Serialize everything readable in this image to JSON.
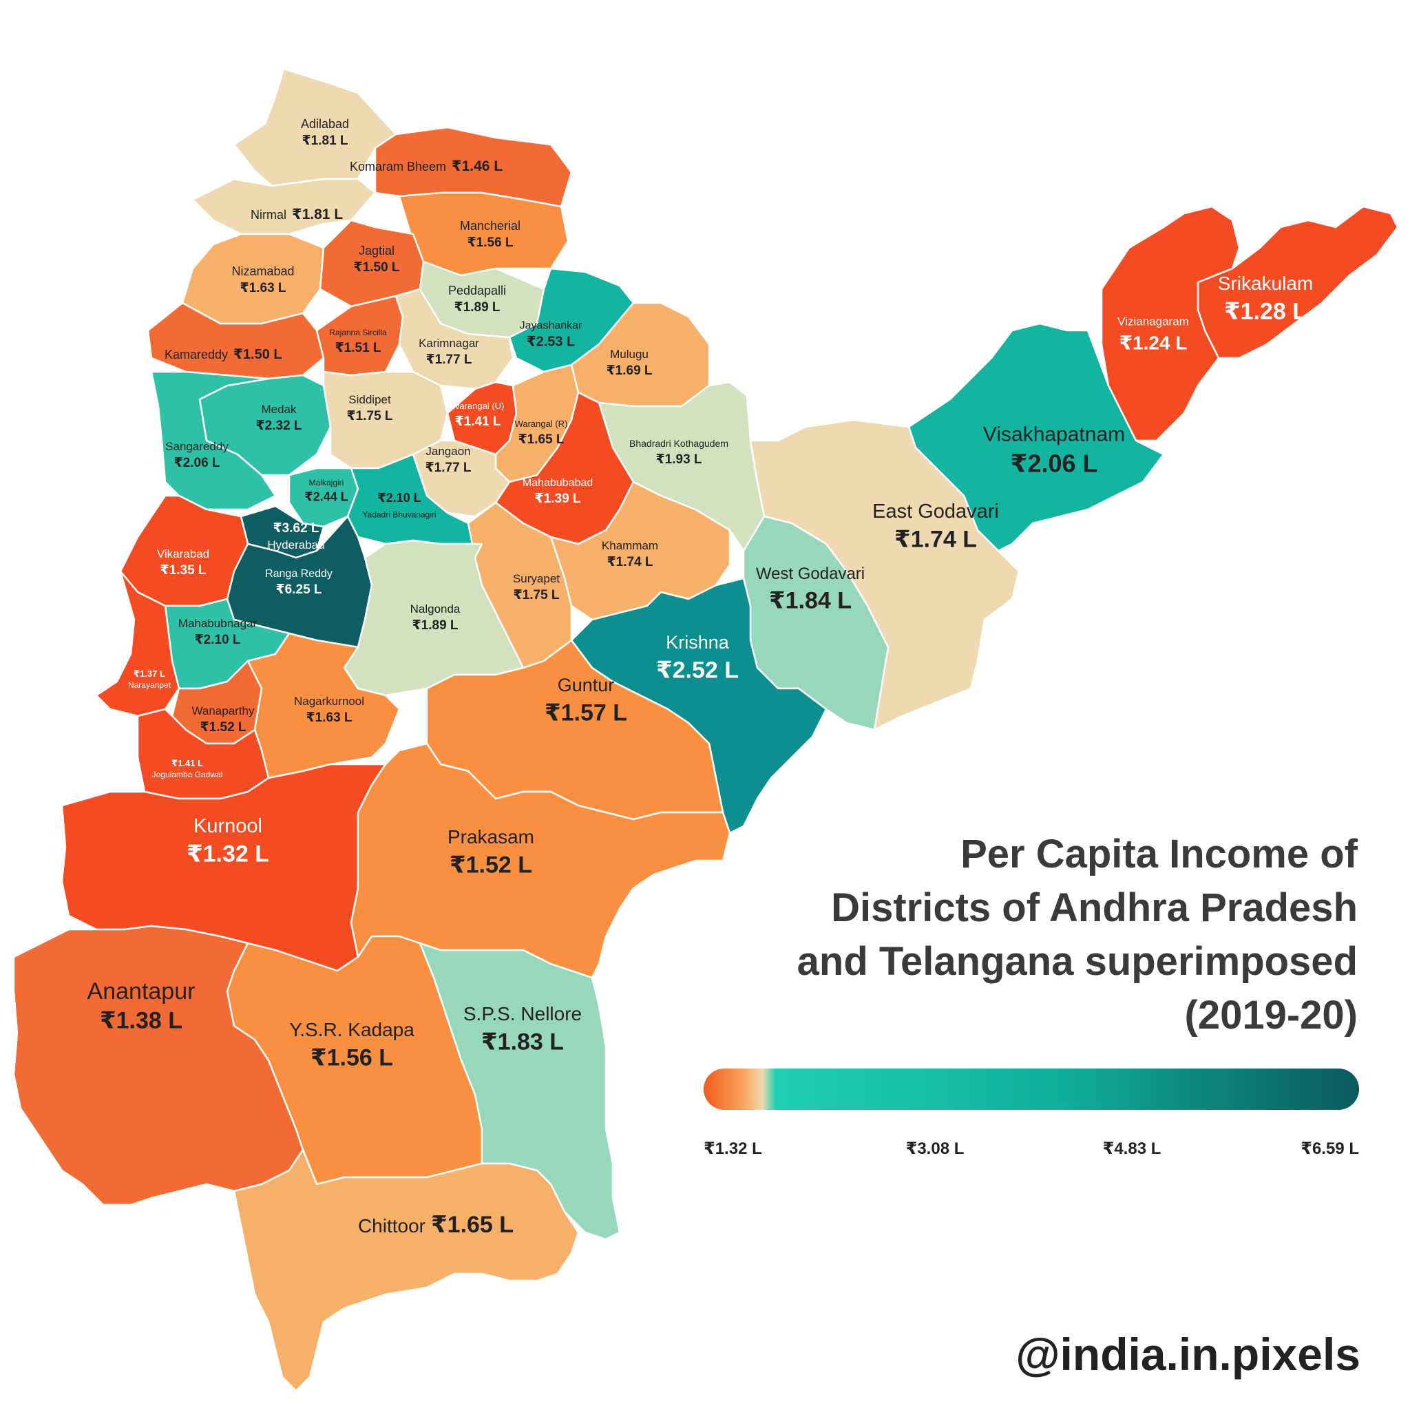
{
  "title": {
    "lines": [
      "Per Capita Income of",
      "Districts of Andhra Pradesh",
      "and Telangana superimposed",
      "(2019-20)"
    ]
  },
  "legend": {
    "ticks": [
      "₹1.32 L",
      "₹3.08 L",
      "₹4.83 L",
      "₹6.59 L"
    ],
    "colors": [
      "#f25a1e",
      "#f7a35c",
      "#efd9b0",
      "#1fd0b4",
      "#11a898",
      "#0a6f74",
      "#0b5a5e"
    ]
  },
  "credit": "@india.in.pixels",
  "colors": {
    "pale": "#eed9b0",
    "light_orange": "#f7b06a",
    "orange": "#f98f40",
    "deep_orange": "#f26a34",
    "red_orange": "#f44b22",
    "mint": "#97d8bd",
    "light_green": "#d2e2be",
    "teal": "#13b4a0",
    "mid_teal": "#2fc0a8",
    "dark_teal": "#0e8f8f",
    "darkest_teal": "#0d5d62",
    "border": "#ffffff"
  },
  "districts": [
    {
      "name": "Adilabad",
      "value": "₹1.81 L"
    },
    {
      "name": "Komaram Bheem",
      "value": "₹1.46 L"
    },
    {
      "name": "Nirmal",
      "value": "₹1.81 L"
    },
    {
      "name": "Mancherial",
      "value": "₹1.56 L"
    },
    {
      "name": "Nizamabad",
      "value": "₹1.63 L"
    },
    {
      "name": "Jagtial",
      "value": "₹1.50 L"
    },
    {
      "name": "Peddapalli",
      "value": "₹1.89 L"
    },
    {
      "name": "Jayashankar",
      "value": "₹2.53 L"
    },
    {
      "name": "Kamareddy",
      "value": "₹1.50 L"
    },
    {
      "name": "Rajanna Sircilla",
      "value": "₹1.51 L"
    },
    {
      "name": "Karimnagar",
      "value": "₹1.77 L"
    },
    {
      "name": "Mulugu",
      "value": "₹1.69 L"
    },
    {
      "name": "Medak",
      "value": "₹2.32 L"
    },
    {
      "name": "Siddipet",
      "value": "₹1.75 L"
    },
    {
      "name": "Warangal (U)",
      "value": "₹1.41 L"
    },
    {
      "name": "Warangal (R)",
      "value": "₹1.65 L"
    },
    {
      "name": "Bhadradri Kothagudem",
      "value": "₹1.93 L"
    },
    {
      "name": "Sangareddy",
      "value": "₹2.06 L"
    },
    {
      "name": "Jangaon",
      "value": "₹1.77 L"
    },
    {
      "name": "Mahabubabad",
      "value": "₹1.39 L"
    },
    {
      "name": "Malkajgiri",
      "value": "₹2.44 L"
    },
    {
      "name": "Yadadri Bhuvanagiri",
      "value": "₹2.10 L"
    },
    {
      "name": "Hyderabad",
      "value": "₹3.62 L"
    },
    {
      "name": "Vikarabad",
      "value": "₹1.35 L"
    },
    {
      "name": "Ranga Reddy",
      "value": "₹6.25 L"
    },
    {
      "name": "Khammam",
      "value": "₹1.74 L"
    },
    {
      "name": "Suryapet",
      "value": "₹1.75 L"
    },
    {
      "name": "Nalgonda",
      "value": "₹1.89 L"
    },
    {
      "name": "Mahabubnagar",
      "value": "₹2.10 L"
    },
    {
      "name": "Narayanpet",
      "value": "₹1.37 L"
    },
    {
      "name": "Wanaparthy",
      "value": "₹1.52 L"
    },
    {
      "name": "Nagarkurnool",
      "value": "₹1.63 L"
    },
    {
      "name": "Jogulamba Gadwal",
      "value": "₹1.41 L"
    },
    {
      "name": "Srikakulam",
      "value": "₹1.28 L"
    },
    {
      "name": "Vizianagaram",
      "value": "₹1.24 L"
    },
    {
      "name": "Visakhapatnam",
      "value": "₹2.06 L"
    },
    {
      "name": "East Godavari",
      "value": "₹1.74 L"
    },
    {
      "name": "West Godavari",
      "value": "₹1.84 L"
    },
    {
      "name": "Krishna",
      "value": "₹2.52 L"
    },
    {
      "name": "Guntur",
      "value": "₹1.57 L"
    },
    {
      "name": "Kurnool",
      "value": "₹1.32 L"
    },
    {
      "name": "Prakasam",
      "value": "₹1.52 L"
    },
    {
      "name": "Anantapur",
      "value": "₹1.38 L"
    },
    {
      "name": "Y.S.R. Kadapa",
      "value": "₹1.56 L"
    },
    {
      "name": "S.P.S. Nellore",
      "value": "₹1.83 L"
    },
    {
      "name": "Chittoor",
      "value": "₹1.65 L"
    }
  ]
}
